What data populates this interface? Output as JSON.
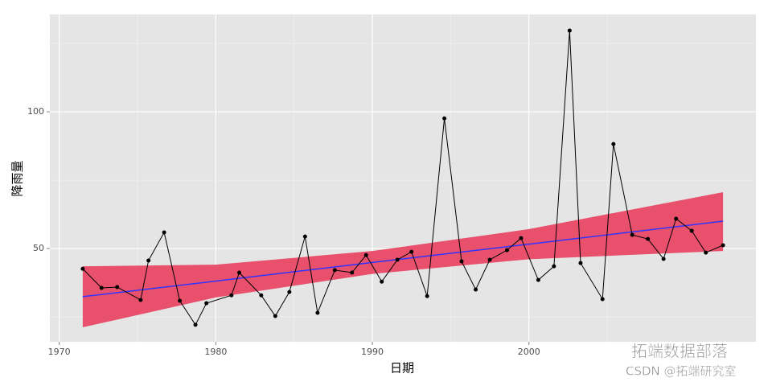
{
  "chart_data": {
    "type": "line",
    "x_label": "日期",
    "y_label": "降雨量",
    "x": [
      1971.5,
      1972.7,
      1973.7,
      1975.2,
      1975.7,
      1976.7,
      1977.7,
      1978.7,
      1979.4,
      1981.0,
      1981.5,
      1982.9,
      1983.8,
      1984.7,
      1985.7,
      1986.5,
      1987.6,
      1988.7,
      1989.6,
      1990.6,
      1991.6,
      1992.5,
      1993.5,
      1994.6,
      1995.7,
      1996.6,
      1997.5,
      1998.6,
      1999.5,
      2000.6,
      2001.6,
      2002.6,
      2003.3,
      2004.7,
      2005.4,
      2006.6,
      2007.6,
      2008.6,
      2009.4,
      2010.4,
      2011.3,
      2012.4
    ],
    "values": [
      42.6,
      35.6,
      35.9,
      31.2,
      45.6,
      55.9,
      30.9,
      22.1,
      30.0,
      32.9,
      41.2,
      32.9,
      25.3,
      34.1,
      54.4,
      26.5,
      42.1,
      41.2,
      47.6,
      37.9,
      45.9,
      48.8,
      32.6,
      97.6,
      45.3,
      35.0,
      45.9,
      49.4,
      53.8,
      38.5,
      43.5,
      129.7,
      44.7,
      31.5,
      88.2,
      55.0,
      53.5,
      46.2,
      60.9,
      56.5,
      48.5,
      51.2
    ],
    "color": "#000000",
    "fit": {
      "x": [
        1971.5,
        1980,
        1990,
        2000,
        2012.4
      ],
      "values": [
        32.4,
        38.1,
        44.9,
        51.6,
        60.0
      ],
      "lower": [
        21.2,
        32.1,
        40.7,
        46.1,
        49.1
      ],
      "upper": [
        43.5,
        44.1,
        49.1,
        57.1,
        70.6
      ],
      "color": "#3333ff",
      "band_color": "#e8506c"
    },
    "xlim": [
      1969.4,
      2014.5
    ],
    "xticks": [
      1970,
      1980,
      1990,
      2000
    ],
    "xminor": [
      1975,
      1985,
      1995,
      2005
    ],
    "ylim": [
      15.9,
      135.6
    ],
    "yticks": [
      50,
      100
    ],
    "yminor": [
      25,
      75,
      125
    ],
    "grid": true,
    "background": "#e5e5e5",
    "annotations": [
      "拓端数据部落",
      "CSDN @拓端研究室"
    ]
  }
}
